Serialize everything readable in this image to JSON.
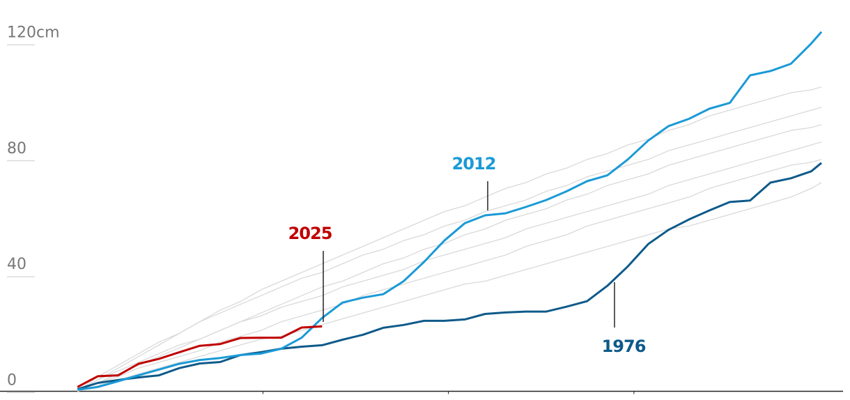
{
  "chart_data": {
    "type": "line",
    "x": [
      0,
      10,
      20,
      30,
      40,
      50,
      60,
      70,
      80,
      90,
      100,
      110,
      120,
      130,
      140,
      150,
      160,
      170,
      180,
      190,
      200,
      210,
      220,
      230,
      240,
      250,
      260,
      270,
      280,
      290,
      300,
      310,
      320,
      330,
      340,
      350,
      360,
      365
    ],
    "xlim": [
      -38,
      379
    ],
    "xticks": [
      91,
      182,
      273
    ],
    "ylim": [
      -3,
      135
    ],
    "yticks": [
      0,
      40,
      80,
      {
        "value": 120,
        "label": "120cm"
      }
    ],
    "series": [
      {
        "color": "#d9d9d9",
        "values": [
          0,
          2,
          4,
          6,
          8,
          10,
          12,
          14,
          16,
          18,
          19,
          21,
          23,
          25,
          27,
          29,
          31,
          33,
          35,
          37,
          38,
          40,
          42,
          44,
          46,
          48,
          50,
          52,
          54,
          56,
          57,
          59,
          61,
          63,
          65,
          67,
          70,
          72
        ]
      },
      {
        "color": "#d9d9d9",
        "values": [
          0,
          3,
          5,
          8,
          10,
          12,
          14,
          17,
          19,
          21,
          24,
          26,
          28,
          30,
          33,
          35,
          37,
          39,
          41,
          43,
          45,
          47,
          50,
          52,
          54,
          57,
          59,
          61,
          63,
          65,
          67,
          70,
          72,
          74,
          76,
          78,
          79,
          80
        ]
      },
      {
        "color": "#d9d9d9",
        "values": [
          0,
          4,
          7,
          10,
          13,
          16,
          18,
          21,
          24,
          26,
          29,
          31,
          33,
          36,
          38,
          40,
          42,
          45,
          47,
          49,
          51,
          53,
          56,
          58,
          60,
          62,
          64,
          66,
          68,
          71,
          73,
          75,
          77,
          79,
          81,
          83,
          85,
          86
        ]
      },
      {
        "color": "#d9d9d9",
        "values": [
          0,
          3,
          6,
          9,
          12,
          15,
          18,
          21,
          24,
          27,
          30,
          33,
          36,
          38,
          41,
          44,
          46,
          49,
          51,
          54,
          56,
          59,
          61,
          63,
          66,
          68,
          71,
          73,
          75,
          78,
          80,
          82,
          84,
          86,
          88,
          90,
          91,
          92
        ]
      },
      {
        "color": "#d9d9d9",
        "values": [
          0,
          5,
          9,
          13,
          17,
          20,
          24,
          27,
          30,
          33,
          36,
          39,
          41,
          44,
          47,
          49,
          52,
          54,
          57,
          59,
          62,
          64,
          66,
          69,
          71,
          74,
          76,
          78,
          80,
          83,
          85,
          87,
          89,
          91,
          93,
          95,
          97,
          98
        ]
      },
      {
        "color": "#d9d9d9",
        "values": [
          0,
          4,
          8,
          12,
          16,
          20,
          24,
          28,
          31,
          35,
          38,
          41,
          44,
          47,
          50,
          53,
          56,
          59,
          62,
          64,
          67,
          70,
          72,
          75,
          77,
          80,
          82,
          85,
          87,
          90,
          92,
          95,
          97,
          99,
          101,
          103,
          104,
          105
        ]
      },
      {
        "name": "1976",
        "color": "#0e5a8a",
        "values": [
          0.7,
          2.9,
          3.9,
          4.8,
          5.5,
          8.0,
          9.6,
          10.1,
          12.5,
          13.5,
          14.7,
          15.4,
          15.9,
          17.8,
          19.5,
          21.9,
          22.9,
          24.3,
          24.3,
          24.8,
          26.7,
          27.2,
          27.5,
          27.5,
          29.2,
          31.1,
          36.4,
          43.1,
          50.8,
          55.7,
          59.3,
          62.4,
          65.3,
          65.8,
          72,
          73.5,
          75.9,
          78.8
        ]
      },
      {
        "name": "2012",
        "color": "#1a9ad6",
        "values": [
          0.5,
          1.5,
          3.5,
          5.5,
          7.5,
          9.5,
          10.8,
          11.5,
          12.5,
          13,
          14.7,
          18.5,
          25.3,
          30.6,
          32.3,
          33.5,
          38,
          44.6,
          52,
          58,
          60.7,
          61.4,
          63.6,
          66,
          69,
          72.5,
          74.5,
          80,
          86.5,
          91.5,
          94,
          97.5,
          99.5,
          109,
          110.5,
          113,
          120,
          124
        ]
      },
      {
        "name": "2025",
        "color": "#c00000",
        "values": [
          1.5,
          5.2,
          5.5,
          9.5,
          11.2,
          13.5,
          15.7,
          16.3,
          18.4,
          18.5,
          18.5,
          22,
          22.4,
          null,
          null,
          null,
          null,
          null,
          null,
          null,
          null,
          null,
          null,
          null,
          null,
          null,
          null,
          null,
          null,
          null,
          null,
          null,
          null,
          null,
          null,
          null,
          null,
          null
        ]
      }
    ]
  }
}
